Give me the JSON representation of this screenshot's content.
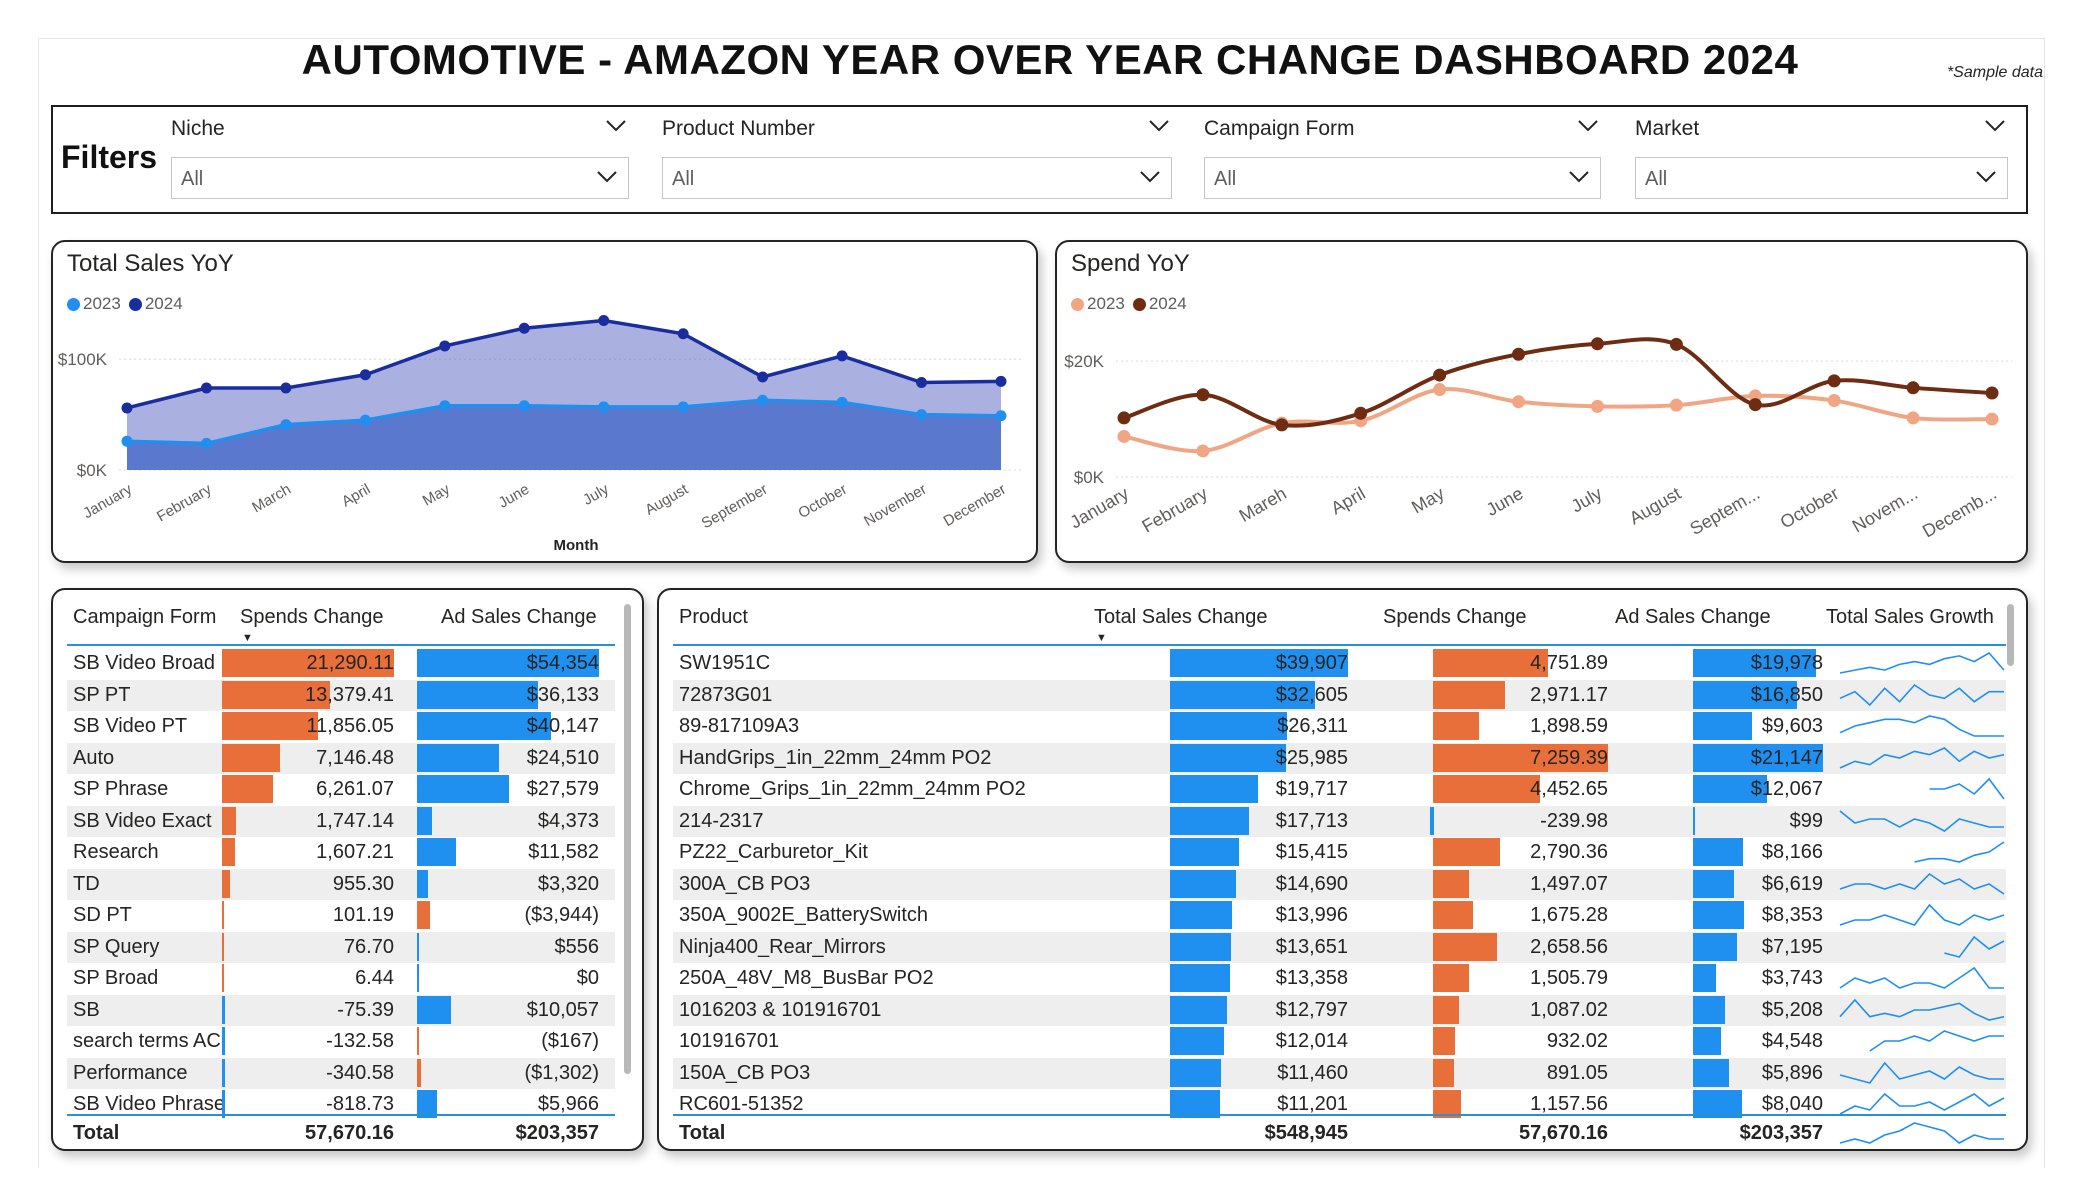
{
  "header": {
    "title": "AUTOMOTIVE - AMAZON YEAR OVER YEAR CHANGE DASHBOARD 2024",
    "note": "*Sample data"
  },
  "filters": {
    "label": "Filters",
    "slicers": [
      {
        "label": "Niche",
        "value": "All"
      },
      {
        "label": "Product Number",
        "value": "All"
      },
      {
        "label": "Campaign Form",
        "value": "All"
      },
      {
        "label": "Market",
        "value": "All"
      }
    ]
  },
  "colors": {
    "sales_2023": "#1f8ff0",
    "sales_2024": "#1a2d9e",
    "spend_2023": "#f0a584",
    "spend_2024": "#6e2c12",
    "bar_orange": "#e86f3a",
    "bar_blue": "#1f8ff0"
  },
  "chart_data": [
    {
      "type": "area",
      "title": "Total Sales YoY",
      "xlabel": "Month",
      "ylabel": "",
      "categories": [
        "January",
        "February",
        "March",
        "April",
        "May",
        "June",
        "July",
        "August",
        "September",
        "October",
        "November",
        "December"
      ],
      "yticks": [
        "$0K",
        "$100K"
      ],
      "ylim": [
        0,
        130000
      ],
      "series": [
        {
          "name": "2023",
          "values": [
            26000,
            24000,
            41000,
            45000,
            58000,
            58000,
            57000,
            57000,
            63000,
            61000,
            50000,
            49000
          ]
        },
        {
          "name": "2024",
          "values": [
            56000,
            74000,
            74000,
            86000,
            112000,
            128000,
            135000,
            123000,
            84000,
            103000,
            79000,
            80000
          ]
        }
      ],
      "grid": true,
      "legend": "top-left"
    },
    {
      "type": "line",
      "title": "Spend YoY",
      "xlabel": "",
      "ylabel": "",
      "categories": [
        "January",
        "February",
        "Mareh",
        "April",
        "May",
        "June",
        "July",
        "August",
        "Septem...",
        "October",
        "Novem...",
        "Decemb..."
      ],
      "yticks": [
        "$0K",
        "$20K"
      ],
      "ylim": [
        0,
        24000
      ],
      "series": [
        {
          "name": "2023",
          "values": [
            7000,
            4500,
            9300,
            9700,
            15100,
            13000,
            12200,
            12400,
            14000,
            13200,
            10200,
            10000
          ]
        },
        {
          "name": "2024",
          "values": [
            10200,
            14200,
            9000,
            11000,
            17600,
            21200,
            23000,
            22900,
            12500,
            16600,
            15400,
            14500
          ]
        }
      ],
      "grid": true,
      "legend": "top-left"
    }
  ],
  "campaign_table": {
    "headers": [
      "Campaign Form",
      "Spends Change",
      "Ad Sales Change"
    ],
    "max_spend": 21290.11,
    "max_sales": 54354,
    "rows": [
      {
        "name": "SB Video Broad",
        "spend": "21,290.11",
        "spend_val": 21290.11,
        "sales": "$54,354",
        "sales_val": 54354
      },
      {
        "name": "SP PT",
        "spend": "13,379.41",
        "spend_val": 13379.41,
        "sales": "$36,133",
        "sales_val": 36133
      },
      {
        "name": "SB Video PT",
        "spend": "11,856.05",
        "spend_val": 11856.05,
        "sales": "$40,147",
        "sales_val": 40147
      },
      {
        "name": "Auto",
        "spend": "7,146.48",
        "spend_val": 7146.48,
        "sales": "$24,510",
        "sales_val": 24510
      },
      {
        "name": "SP Phrase",
        "spend": "6,261.07",
        "spend_val": 6261.07,
        "sales": "$27,579",
        "sales_val": 27579
      },
      {
        "name": "SB Video Exact",
        "spend": "1,747.14",
        "spend_val": 1747.14,
        "sales": "$4,373",
        "sales_val": 4373
      },
      {
        "name": "Research",
        "spend": "1,607.21",
        "spend_val": 1607.21,
        "sales": "$11,582",
        "sales_val": 11582
      },
      {
        "name": "TD",
        "spend": "955.30",
        "spend_val": 955.3,
        "sales": "$3,320",
        "sales_val": 3320
      },
      {
        "name": "SD PT",
        "spend": "101.19",
        "spend_val": 101.19,
        "sales": "($3,944)",
        "sales_val": -3944
      },
      {
        "name": "SP Query",
        "spend": "76.70",
        "spend_val": 76.7,
        "sales": "$556",
        "sales_val": 556
      },
      {
        "name": "SP Broad",
        "spend": "6.44",
        "spend_val": 6.44,
        "sales": "$0",
        "sales_val": 0
      },
      {
        "name": "SB",
        "spend": "-75.39",
        "spend_val": -75.39,
        "sales": "$10,057",
        "sales_val": 10057
      },
      {
        "name": "search terms AC",
        "spend": "-132.58",
        "spend_val": -132.58,
        "sales": "($167)",
        "sales_val": -167
      },
      {
        "name": "Performance",
        "spend": "-340.58",
        "spend_val": -340.58,
        "sales": "($1,302)",
        "sales_val": -1302
      },
      {
        "name": "SB Video Phrase",
        "spend": "-818.73",
        "spend_val": -818.73,
        "sales": "$5,966",
        "sales_val": 5966
      }
    ],
    "total": {
      "label": "Total",
      "spend": "57,670.16",
      "sales": "$203,357"
    }
  },
  "product_table": {
    "headers": [
      "Product",
      "Total Sales Change",
      "Spends Change",
      "Ad Sales Change",
      "Total Sales Growth"
    ],
    "max_sales": 39907,
    "max_spend": 7259.39,
    "max_ad": 21147,
    "rows": [
      {
        "name": "SW1951C",
        "sales": "$39,907",
        "sales_val": 39907,
        "spend": "4,751.89",
        "spend_val": 4751.89,
        "ad": "$19,978",
        "ad_val": 19978,
        "spark": [
          3,
          4,
          5,
          4,
          6,
          7,
          6,
          8,
          9,
          7,
          10,
          4
        ]
      },
      {
        "name": "72873G01",
        "sales": "$32,605",
        "sales_val": 32605,
        "spend": "2,971.17",
        "spend_val": 2971.17,
        "ad": "$16,850",
        "ad_val": 16850,
        "spark": [
          5,
          7,
          3,
          8,
          4,
          9,
          6,
          5,
          8,
          4,
          7,
          7
        ]
      },
      {
        "name": "89-817109A3",
        "sales": "$26,311",
        "sales_val": 26311,
        "spend": "1,898.59",
        "spend_val": 1898.59,
        "ad": "$9,603",
        "ad_val": 9603,
        "spark": [
          4,
          6,
          7,
          8,
          8,
          7,
          9,
          8,
          5,
          3,
          3,
          3
        ]
      },
      {
        "name": "HandGrips_1in_22mm_24mm PO2",
        "sales": "$25,985",
        "sales_val": 25985,
        "spend": "7,259.39",
        "spend_val": 7259.39,
        "ad": "$21,147",
        "ad_val": 21147,
        "spark": [
          3,
          5,
          4,
          7,
          6,
          8,
          7,
          9,
          5,
          8,
          6,
          7
        ]
      },
      {
        "name": "Chrome_Grips_1in_22mm_24mm PO2",
        "sales": "$19,717",
        "sales_val": 19717,
        "spend": "4,452.65",
        "spend_val": 4452.65,
        "ad": "$12,067",
        "ad_val": 12067,
        "spark": [
          null,
          null,
          null,
          null,
          null,
          null,
          6,
          6,
          7,
          5,
          8,
          4
        ]
      },
      {
        "name": "214-2317",
        "sales": "$17,713",
        "sales_val": 17713,
        "spend": "-239.98",
        "spend_val": -239.98,
        "ad": "$99",
        "ad_val": 99,
        "spark": [
          8,
          5,
          6,
          6,
          4,
          6,
          5,
          3,
          6,
          5,
          4,
          4
        ]
      },
      {
        "name": "PZ22_Carburetor_Kit",
        "sales": "$15,415",
        "sales_val": 15415,
        "spend": "2,790.36",
        "spend_val": 2790.36,
        "ad": "$8,166",
        "ad_val": 8166,
        "spark": [
          null,
          null,
          null,
          null,
          null,
          3,
          4,
          4,
          3,
          5,
          6,
          9
        ]
      },
      {
        "name": "300A_CB PO3",
        "sales": "$14,690",
        "sales_val": 14690,
        "spend": "1,497.07",
        "spend_val": 1497.07,
        "ad": "$6,619",
        "ad_val": 6619,
        "spark": [
          5,
          6,
          6,
          5,
          6,
          5,
          8,
          6,
          7,
          5,
          6,
          4
        ]
      },
      {
        "name": "350A_9002E_BatterySwitch",
        "sales": "$13,996",
        "sales_val": 13996,
        "spend": "1,675.28",
        "spend_val": 1675.28,
        "ad": "$8,353",
        "ad_val": 8353,
        "spark": [
          4,
          5,
          5,
          6,
          5,
          4,
          8,
          5,
          4,
          6,
          5,
          6
        ]
      },
      {
        "name": "Ninja400_Rear_Mirrors",
        "sales": "$13,651",
        "sales_val": 13651,
        "spend": "2,658.56",
        "spend_val": 2658.56,
        "ad": "$7,195",
        "ad_val": 7195,
        "spark": [
          null,
          null,
          null,
          null,
          null,
          null,
          null,
          4,
          3,
          8,
          5,
          7
        ]
      },
      {
        "name": "250A_48V_M8_BusBar PO2",
        "sales": "$13,358",
        "sales_val": 13358,
        "spend": "1,505.79",
        "spend_val": 1505.79,
        "ad": "$3,743",
        "ad_val": 3743,
        "spark": [
          4,
          6,
          5,
          6,
          4,
          5,
          5,
          4,
          6,
          8,
          4,
          4
        ]
      },
      {
        "name": "1016203 & 101916701",
        "sales": "$12,797",
        "sales_val": 12797,
        "spend": "1,087.02",
        "spend_val": 1087.02,
        "ad": "$5,208",
        "ad_val": 5208,
        "spark": [
          4,
          9,
          4,
          5,
          4,
          6,
          6,
          7,
          8,
          5,
          3,
          4
        ]
      },
      {
        "name": "101916701",
        "sales": "$12,014",
        "sales_val": 12014,
        "spend": "932.02",
        "spend_val": 932.02,
        "ad": "$4,548",
        "ad_val": 4548,
        "spark": [
          null,
          null,
          3,
          5,
          5,
          6,
          5,
          7,
          6,
          5,
          6,
          6
        ]
      },
      {
        "name": "150A_CB PO3",
        "sales": "$11,460",
        "sales_val": 11460,
        "spend": "891.05",
        "spend_val": 891.05,
        "ad": "$5,896",
        "ad_val": 5896,
        "spark": [
          6,
          5,
          4,
          9,
          5,
          6,
          7,
          5,
          8,
          6,
          5,
          5
        ]
      },
      {
        "name": "RC601-51352",
        "sales": "$11,201",
        "sales_val": 11201,
        "spend": "1,157.56",
        "spend_val": 1157.56,
        "ad": "$8,040",
        "ad_val": 8040,
        "spark": [
          3,
          5,
          4,
          8,
          5,
          5,
          6,
          4,
          6,
          8,
          5,
          7
        ]
      }
    ],
    "total": {
      "label": "Total",
      "sales": "$548,945",
      "spend": "57,670.16",
      "ad": "$203,357",
      "spark": [
        4,
        5,
        4,
        6,
        7,
        9,
        8,
        7,
        4,
        6,
        5,
        5
      ]
    }
  }
}
